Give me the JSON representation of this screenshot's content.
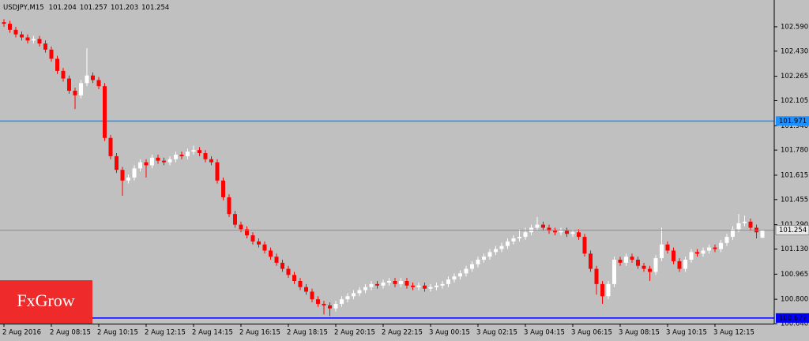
{
  "chart_data": {
    "type": "candlestick",
    "symbol": "USDJPY,M15",
    "background": "#c0c0c0",
    "up_color": "#ffffff",
    "down_color": "#ff0000",
    "ylim": [
      100.64,
      102.766
    ],
    "yticks": [
      {
        "value": 102.59,
        "label": "102.590"
      },
      {
        "value": 102.43,
        "label": "102.430"
      },
      102.265,
      102.105,
      {
        "value": 101.94,
        "label": "101.940"
      },
      {
        "value": 101.78,
        "label": "101.780"
      },
      101.615,
      101.455,
      {
        "value": 101.29,
        "label": "101.290"
      },
      {
        "value": 101.13,
        "label": "101.130"
      },
      100.965,
      {
        "value": 100.8,
        "label": "100.800"
      },
      {
        "value": 100.64,
        "label": "100.640"
      }
    ],
    "price_lines": [
      {
        "value": 101.971,
        "color": "#1e90ff"
      },
      {
        "value": 100.677,
        "color": "#0000ff"
      }
    ],
    "last_price_color": "#8a8a9a",
    "logo": "FxGrow",
    "logo_color": "#ee2a2a",
    "categories": [
      "2 Aug 2016",
      null,
      null,
      null,
      null,
      null,
      null,
      null,
      "2 Aug 08:15",
      null,
      null,
      null,
      null,
      null,
      null,
      null,
      "2 Aug 10:15",
      null,
      null,
      null,
      null,
      null,
      null,
      null,
      "2 Aug 12:15",
      null,
      null,
      null,
      null,
      null,
      null,
      null,
      "2 Aug 14:15",
      null,
      null,
      null,
      null,
      null,
      null,
      null,
      "2 Aug 16:15",
      null,
      null,
      null,
      null,
      null,
      null,
      null,
      "2 Aug 18:15",
      null,
      null,
      null,
      null,
      null,
      null,
      null,
      "2 Aug 20:15",
      null,
      null,
      null,
      null,
      null,
      null,
      null,
      "2 Aug 22:15",
      null,
      null,
      null,
      null,
      null,
      null,
      null,
      "3 Aug 00:15",
      null,
      null,
      null,
      null,
      null,
      null,
      null,
      "3 Aug 02:15",
      null,
      null,
      null,
      null,
      null,
      null,
      null,
      "3 Aug 04:15",
      null,
      null,
      null,
      null,
      null,
      null,
      null,
      "3 Aug 06:15",
      null,
      null,
      null,
      null,
      null,
      null,
      null,
      "3 Aug 08:15",
      null,
      null,
      null,
      null,
      null,
      null,
      null,
      "3 Aug 10:15",
      null,
      null,
      null,
      null,
      null,
      null,
      null,
      "3 Aug 12:15",
      null,
      null,
      null,
      null,
      null,
      null,
      null,
      null
    ],
    "open": [
      102.62,
      102.61,
      102.57,
      102.54,
      102.52,
      102.5,
      102.51,
      102.48,
      102.44,
      102.38,
      102.3,
      102.25,
      102.17,
      102.14,
      102.22,
      102.27,
      102.24,
      102.2,
      101.86,
      101.74,
      101.65,
      101.58,
      101.6,
      101.66,
      101.7,
      101.68,
      101.73,
      101.71,
      101.7,
      101.72,
      101.75,
      101.74,
      101.77,
      101.78,
      101.76,
      101.72,
      101.7,
      101.58,
      101.47,
      101.36,
      101.29,
      101.26,
      101.22,
      101.18,
      101.16,
      101.12,
      101.08,
      101.04,
      101.0,
      100.96,
      100.92,
      100.88,
      100.85,
      100.8,
      100.77,
      100.76,
      100.74,
      100.77,
      100.8,
      100.82,
      100.84,
      100.86,
      100.88,
      100.9,
      100.89,
      100.91,
      100.92,
      100.9,
      100.92,
      100.89,
      100.88,
      100.89,
      100.87,
      100.88,
      100.89,
      100.9,
      100.93,
      100.95,
      100.97,
      101.0,
      101.03,
      101.06,
      101.08,
      101.11,
      101.13,
      101.15,
      101.18,
      101.2,
      101.21,
      101.24,
      101.27,
      101.29,
      101.27,
      101.25,
      101.24,
      101.25,
      101.23,
      101.24,
      101.21,
      101.1,
      101.0,
      100.9,
      100.82,
      100.9,
      101.06,
      101.04,
      101.08,
      101.06,
      101.02,
      101.0,
      100.98,
      101.07,
      101.16,
      101.12,
      101.05,
      101.0,
      101.06,
      101.11,
      101.1,
      101.12,
      101.14,
      101.13,
      101.17,
      101.21,
      101.26,
      101.3,
      101.31,
      101.27,
      101.204
    ],
    "high": [
      102.64,
      102.63,
      102.59,
      102.56,
      102.54,
      102.53,
      102.53,
      102.5,
      102.46,
      102.4,
      102.32,
      102.27,
      102.19,
      102.24,
      102.45,
      102.29,
      102.26,
      102.22,
      101.88,
      101.76,
      101.67,
      101.62,
      101.68,
      101.72,
      101.72,
      101.75,
      101.75,
      101.73,
      101.74,
      101.77,
      101.77,
      101.79,
      101.81,
      101.8,
      101.78,
      101.74,
      101.72,
      101.6,
      101.49,
      101.38,
      101.31,
      101.28,
      101.24,
      101.2,
      101.18,
      101.14,
      101.1,
      101.06,
      101.02,
      100.98,
      100.94,
      100.9,
      100.87,
      100.82,
      100.79,
      100.78,
      100.79,
      100.82,
      100.84,
      100.86,
      100.88,
      100.9,
      100.92,
      100.92,
      100.93,
      100.94,
      100.94,
      100.94,
      100.94,
      100.91,
      100.91,
      100.91,
      100.9,
      100.91,
      100.92,
      100.95,
      100.97,
      100.99,
      101.02,
      101.05,
      101.08,
      101.1,
      101.13,
      101.15,
      101.17,
      101.2,
      101.22,
      101.26,
      101.27,
      101.29,
      101.34,
      101.31,
      101.29,
      101.27,
      101.27,
      101.27,
      101.26,
      101.26,
      101.23,
      101.12,
      101.02,
      100.92,
      100.92,
      101.08,
      101.08,
      101.1,
      101.1,
      101.08,
      101.04,
      101.02,
      101.09,
      101.27,
      101.18,
      101.14,
      101.07,
      101.08,
      101.13,
      101.13,
      101.14,
      101.16,
      101.16,
      101.19,
      101.23,
      101.28,
      101.36,
      101.35,
      101.33,
      101.29,
      101.257
    ],
    "low": [
      102.59,
      102.55,
      102.52,
      102.5,
      102.48,
      102.48,
      102.46,
      102.42,
      102.36,
      102.28,
      102.23,
      102.15,
      102.05,
      102.12,
      102.2,
      102.22,
      102.18,
      101.84,
      101.72,
      101.63,
      101.48,
      101.56,
      101.58,
      101.64,
      101.6,
      101.66,
      101.69,
      101.68,
      101.68,
      101.7,
      101.72,
      101.72,
      101.75,
      101.74,
      101.7,
      101.68,
      101.56,
      101.45,
      101.34,
      101.27,
      101.24,
      101.2,
      101.16,
      101.14,
      101.1,
      101.06,
      101.02,
      100.98,
      100.94,
      100.9,
      100.86,
      100.83,
      100.78,
      100.75,
      100.7,
      100.69,
      100.72,
      100.75,
      100.78,
      100.8,
      100.82,
      100.84,
      100.86,
      100.87,
      100.87,
      100.89,
      100.88,
      100.88,
      100.87,
      100.86,
      100.86,
      100.85,
      100.85,
      100.86,
      100.87,
      100.88,
      100.91,
      100.93,
      100.95,
      100.98,
      101.01,
      101.04,
      101.06,
      101.09,
      101.11,
      101.13,
      101.16,
      101.18,
      101.19,
      101.22,
      101.25,
      101.25,
      101.23,
      101.22,
      101.22,
      101.21,
      101.21,
      101.19,
      101.08,
      100.98,
      100.83,
      100.77,
      100.8,
      100.88,
      101.02,
      101.02,
      101.04,
      101.0,
      100.98,
      100.92,
      100.96,
      101.05,
      101.1,
      101.03,
      100.98,
      100.98,
      101.04,
      101.08,
      101.08,
      101.1,
      101.11,
      101.11,
      101.15,
      101.19,
      101.24,
      101.28,
      101.25,
      101.2,
      101.203
    ],
    "close": [
      102.61,
      102.57,
      102.54,
      102.52,
      102.5,
      102.51,
      102.48,
      102.44,
      102.38,
      102.3,
      102.25,
      102.17,
      102.14,
      102.22,
      102.27,
      102.24,
      102.2,
      101.86,
      101.74,
      101.65,
      101.58,
      101.6,
      101.66,
      101.7,
      101.68,
      101.73,
      101.71,
      101.7,
      101.72,
      101.75,
      101.74,
      101.77,
      101.78,
      101.76,
      101.72,
      101.7,
      101.58,
      101.47,
      101.36,
      101.29,
      101.26,
      101.22,
      101.18,
      101.16,
      101.12,
      101.08,
      101.04,
      101.0,
      100.96,
      100.92,
      100.88,
      100.85,
      100.8,
      100.77,
      100.76,
      100.74,
      100.77,
      100.8,
      100.82,
      100.84,
      100.86,
      100.88,
      100.9,
      100.89,
      100.91,
      100.92,
      100.9,
      100.92,
      100.89,
      100.88,
      100.89,
      100.87,
      100.88,
      100.89,
      100.9,
      100.93,
      100.95,
      100.97,
      101.0,
      101.03,
      101.06,
      101.08,
      101.11,
      101.13,
      101.15,
      101.18,
      101.2,
      101.21,
      101.24,
      101.27,
      101.29,
      101.27,
      101.25,
      101.24,
      101.25,
      101.23,
      101.24,
      101.21,
      101.1,
      101.0,
      100.9,
      100.82,
      100.9,
      101.06,
      101.04,
      101.08,
      101.06,
      101.02,
      101.0,
      100.98,
      101.07,
      101.16,
      101.12,
      101.05,
      101.0,
      101.06,
      101.11,
      101.1,
      101.12,
      101.14,
      101.13,
      101.17,
      101.21,
      101.26,
      101.3,
      101.31,
      101.27,
      101.24,
      101.254
    ]
  }
}
